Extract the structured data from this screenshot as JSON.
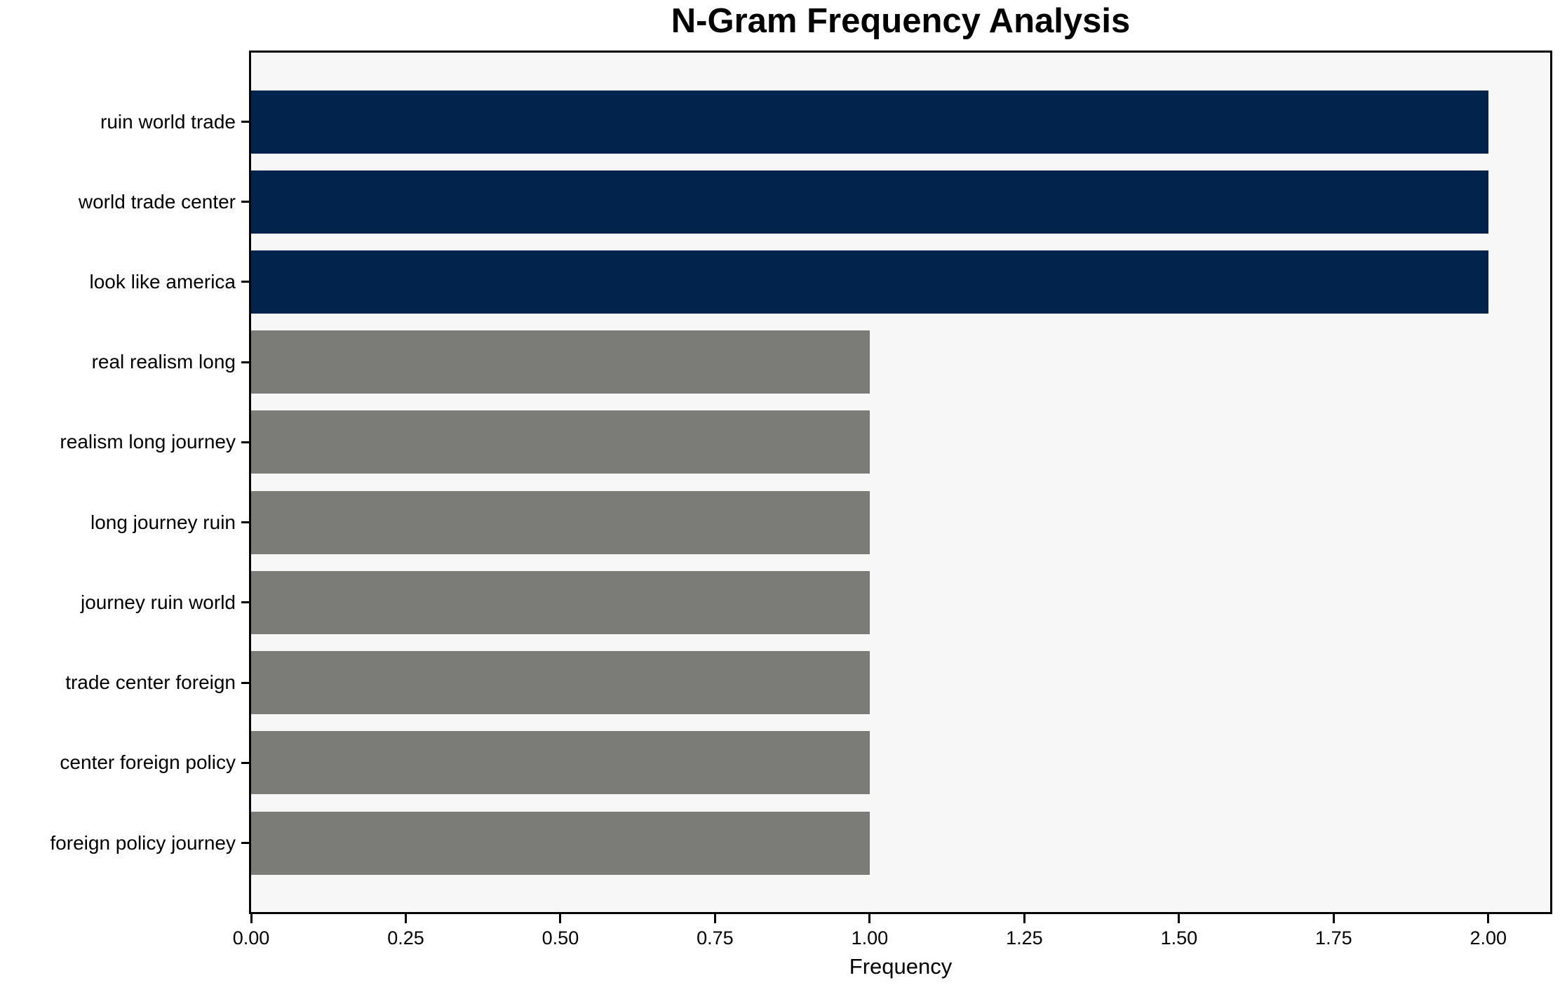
{
  "chart_data": {
    "type": "bar",
    "orientation": "horizontal",
    "title": "N-Gram Frequency Analysis",
    "xlabel": "Frequency",
    "ylabel": "",
    "categories": [
      "ruin world trade",
      "world trade center",
      "look like america",
      "real realism long",
      "realism long journey",
      "long journey ruin",
      "journey ruin world",
      "trade center foreign",
      "center foreign policy",
      "foreign policy journey"
    ],
    "values": [
      2,
      2,
      2,
      1,
      1,
      1,
      1,
      1,
      1,
      1
    ],
    "bar_colors": [
      "#02234c",
      "#02234c",
      "#02234c",
      "#7b7b78",
      "#7b7b78",
      "#7b7b78",
      "#7b7b78",
      "#7b7b78",
      "#7b7b78",
      "#7b7b78"
    ],
    "xlim": [
      0,
      2.1
    ],
    "xticks": [
      0.0,
      0.25,
      0.5,
      0.75,
      1.0,
      1.25,
      1.5,
      1.75,
      2.0
    ],
    "xtick_labels": [
      "0.00",
      "0.25",
      "0.50",
      "0.75",
      "1.00",
      "1.25",
      "1.50",
      "1.75",
      "2.00"
    ],
    "grid": false,
    "legend": null,
    "colors": {
      "highlight": "#02234c",
      "normal": "#7b7b78",
      "plot_background": "#f7f7f7",
      "figure_background": "#ffffff",
      "axis": "#000000"
    }
  }
}
